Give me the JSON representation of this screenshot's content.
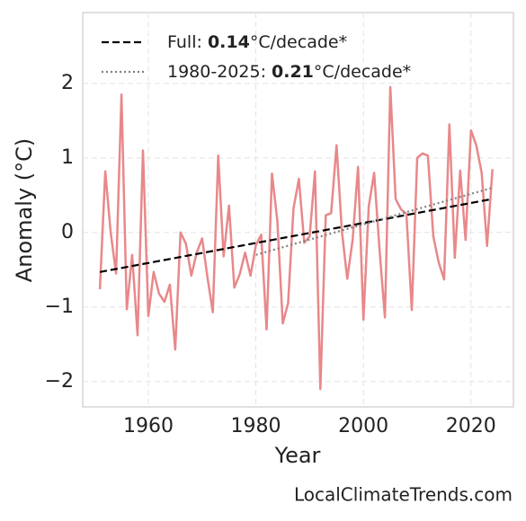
{
  "chart_data": {
    "type": "line",
    "xlabel": "Year",
    "ylabel": "Anomaly (°C)",
    "footer": "LocalClimateTrends.com",
    "x": [
      1951,
      1952,
      1953,
      1954,
      1955,
      1956,
      1957,
      1958,
      1959,
      1960,
      1961,
      1962,
      1963,
      1964,
      1965,
      1966,
      1967,
      1968,
      1969,
      1970,
      1971,
      1972,
      1973,
      1974,
      1975,
      1976,
      1977,
      1978,
      1979,
      1980,
      1981,
      1982,
      1983,
      1984,
      1985,
      1986,
      1987,
      1988,
      1989,
      1990,
      1991,
      1992,
      1993,
      1994,
      1995,
      1996,
      1997,
      1998,
      1999,
      2000,
      2001,
      2002,
      2003,
      2004,
      2005,
      2006,
      2007,
      2008,
      2009,
      2010,
      2011,
      2012,
      2013,
      2014,
      2015,
      2016,
      2017,
      2018,
      2019,
      2020,
      2021,
      2022,
      2023,
      2024
    ],
    "series": [
      {
        "color": "#e8888a",
        "style": "solid",
        "values": [
          -0.76,
          0.82,
          0.0,
          -0.55,
          1.85,
          -1.03,
          -0.3,
          -1.38,
          1.1,
          -1.12,
          -0.53,
          -0.82,
          -0.93,
          -0.7,
          -1.57,
          0.0,
          -0.15,
          -0.58,
          -0.27,
          -0.08,
          -0.6,
          -1.07,
          1.03,
          -0.32,
          0.36,
          -0.74,
          -0.56,
          -0.27,
          -0.58,
          -0.17,
          -0.03,
          -1.3,
          0.79,
          0.15,
          -1.22,
          -0.95,
          0.32,
          0.72,
          -0.14,
          -0.05,
          0.82,
          -2.1,
          0.23,
          0.26,
          1.17,
          0.02,
          -0.62,
          -0.1,
          0.88,
          -1.17,
          0.35,
          0.8,
          -0.23,
          -1.14,
          1.95,
          0.45,
          0.31,
          0.25,
          -1.04,
          1.0,
          1.06,
          1.03,
          -0.05,
          -0.4,
          -0.63,
          1.45,
          -0.34,
          0.83,
          -0.1,
          1.37,
          1.17,
          0.8,
          -0.18,
          0.85
        ]
      },
      {
        "name": "Full: 0.14°C/decade*",
        "color": "#000000",
        "style": "dashed",
        "x": [
          1951,
          2024
        ],
        "values": [
          -0.53,
          0.45
        ]
      },
      {
        "name": "1980-2025: 0.21°C/decade*",
        "color": "#808080",
        "style": "dotted",
        "x": [
          1980,
          2024
        ],
        "values": [
          -0.3,
          0.6
        ]
      }
    ],
    "xlim": [
      1947.8,
      2027.9
    ],
    "ylim": [
      -2.34,
      2.95
    ],
    "xticks": [
      1960,
      1980,
      2000,
      2020
    ],
    "yticks": [
      {
        "value": -2,
        "label": "−2"
      },
      {
        "value": -1,
        "label": "−1"
      },
      0,
      1,
      2
    ],
    "grid": true,
    "legend": "upper left"
  }
}
